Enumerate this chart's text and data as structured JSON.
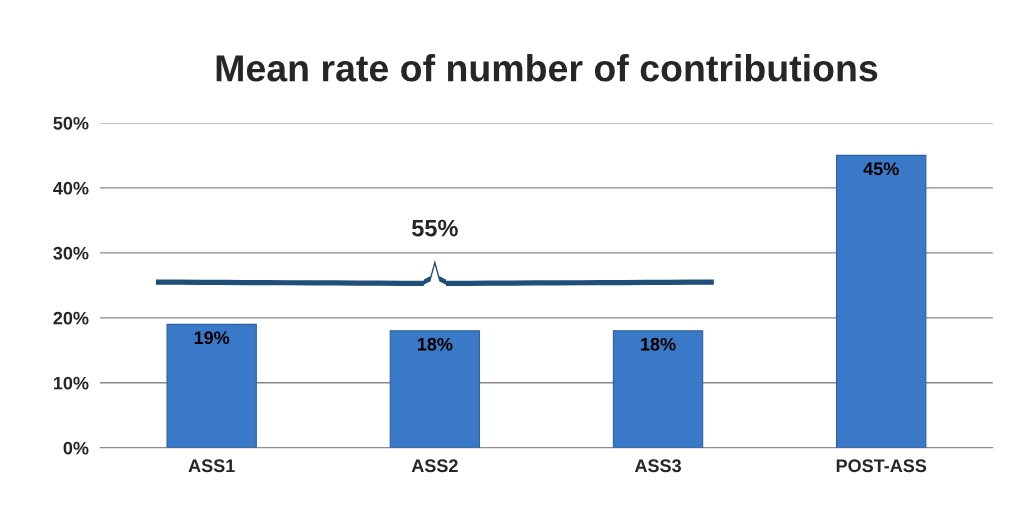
{
  "chart_data": {
    "type": "bar",
    "title": "Mean rate of number of contributions",
    "categories": [
      "ASS1",
      "ASS2",
      "ASS3",
      "POST-ASS"
    ],
    "values": [
      19,
      18,
      18,
      45
    ],
    "color": "#3a78c8",
    "data_labels": true,
    "value_labels": [
      "19%",
      "18%",
      "18%",
      "45%"
    ],
    "ylim": [
      0,
      50
    ],
    "yticks": [
      {
        "value": 0,
        "label": "0%"
      },
      {
        "value": 10,
        "label": "10%"
      },
      {
        "value": 20,
        "label": "20%"
      },
      {
        "value": 30,
        "label": "30%"
      },
      {
        "value": 40,
        "label": "40%"
      },
      {
        "value": 50,
        "label": "50%"
      }
    ],
    "grid": "y",
    "annotations": [
      "55%"
    ]
  }
}
